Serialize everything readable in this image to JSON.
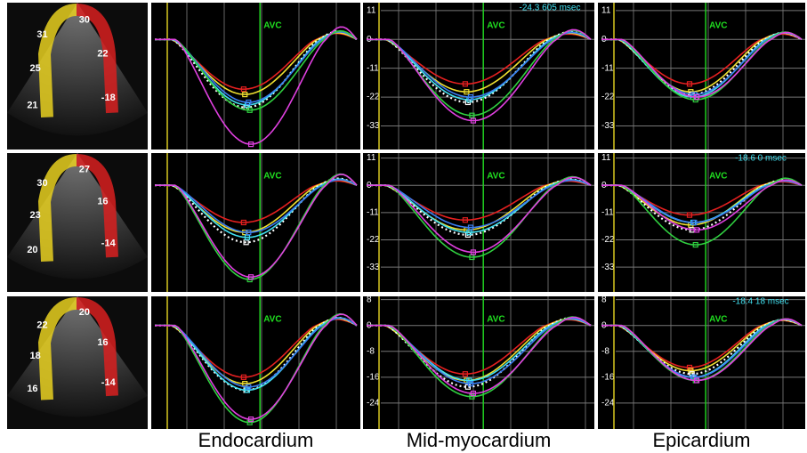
{
  "columns": [
    "Endocardium",
    "Mid-myocardium",
    "Epicardium"
  ],
  "rows": [
    {
      "echo_labels": [
        "30",
        "31",
        "22",
        "25",
        "-18",
        "21"
      ],
      "panels": [
        {
          "ylim": [
            -42,
            14
          ],
          "avc": "AVC",
          "curves": [
            {
              "color": "#e52020",
              "peak": -19
            },
            {
              "color": "#f0e030",
              "peak": -21
            },
            {
              "color": "#ffffff",
              "peak": -26
            },
            {
              "color": "#40e0f0",
              "peak": -25
            },
            {
              "color": "#3a7cf0",
              "peak": -24
            },
            {
              "color": "#30d040",
              "peak": -27
            },
            {
              "color": "#e040e0",
              "peak": -40
            }
          ]
        },
        {
          "ylim": [
            -42,
            14
          ],
          "yticks": [
            11,
            0,
            -11,
            -22,
            -33
          ],
          "avc": "AVC",
          "cursor": "-24.3  605 msec",
          "curves": [
            {
              "color": "#e52020",
              "peak": -17
            },
            {
              "color": "#f0e030",
              "peak": -20
            },
            {
              "color": "#ffffff",
              "peak": -24
            },
            {
              "color": "#40e0f0",
              "peak": -23
            },
            {
              "color": "#3a7cf0",
              "peak": -22
            },
            {
              "color": "#30d040",
              "peak": -29
            },
            {
              "color": "#e040e0",
              "peak": -31
            }
          ]
        },
        {
          "ylim": [
            -42,
            14
          ],
          "yticks": [
            11,
            0,
            -11,
            -22,
            -33
          ],
          "avc": "AVC",
          "curves": [
            {
              "color": "#e52020",
              "peak": -17
            },
            {
              "color": "#f0e030",
              "peak": -20
            },
            {
              "color": "#ffffff",
              "peak": -21
            },
            {
              "color": "#40e0f0",
              "peak": -22
            },
            {
              "color": "#3a7cf0",
              "peak": -21
            },
            {
              "color": "#30d040",
              "peak": -23
            },
            {
              "color": "#e040e0",
              "peak": -22
            }
          ]
        }
      ]
    },
    {
      "echo_labels": [
        "27",
        "30",
        "16",
        "23",
        "-14",
        "20"
      ],
      "panels": [
        {
          "ylim": [
            -43,
            13
          ],
          "avc": "AVC",
          "curves": [
            {
              "color": "#e52020",
              "peak": -15
            },
            {
              "color": "#f0e030",
              "peak": -19
            },
            {
              "color": "#ffffff",
              "peak": -23
            },
            {
              "color": "#40e0f0",
              "peak": -21
            },
            {
              "color": "#3a7cf0",
              "peak": -19
            },
            {
              "color": "#30d040",
              "peak": -38
            },
            {
              "color": "#e040e0",
              "peak": -37
            }
          ]
        },
        {
          "ylim": [
            -43,
            13
          ],
          "yticks": [
            11,
            0,
            -11,
            -22,
            -33
          ],
          "avc": "AVC",
          "curves": [
            {
              "color": "#e52020",
              "peak": -14
            },
            {
              "color": "#f0e030",
              "peak": -18
            },
            {
              "color": "#ffffff",
              "peak": -20
            },
            {
              "color": "#40e0f0",
              "peak": -19
            },
            {
              "color": "#3a7cf0",
              "peak": -17
            },
            {
              "color": "#30d040",
              "peak": -29
            },
            {
              "color": "#e040e0",
              "peak": -27
            }
          ]
        },
        {
          "ylim": [
            -43,
            13
          ],
          "yticks": [
            11,
            0,
            -11,
            -22,
            -33
          ],
          "avc": "AVC",
          "cursor": "-18.6  0 msec",
          "curves": [
            {
              "color": "#e52020",
              "peak": -12
            },
            {
              "color": "#f0e030",
              "peak": -16
            },
            {
              "color": "#ffffff",
              "peak": -18
            },
            {
              "color": "#40e0f0",
              "peak": -15
            },
            {
              "color": "#3a7cf0",
              "peak": -15
            },
            {
              "color": "#30d040",
              "peak": -24
            },
            {
              "color": "#e040e0",
              "peak": -18
            }
          ]
        }
      ]
    },
    {
      "echo_labels": [
        "20",
        "22",
        "16",
        "18",
        "-14",
        "16"
      ],
      "panels": [
        {
          "ylim": [
            -32,
            9
          ],
          "avc": "AVC",
          "curves": [
            {
              "color": "#e52020",
              "peak": -16
            },
            {
              "color": "#f0e030",
              "peak": -18
            },
            {
              "color": "#ffffff",
              "peak": -20
            },
            {
              "color": "#40e0f0",
              "peak": -20
            },
            {
              "color": "#3a7cf0",
              "peak": -19
            },
            {
              "color": "#30d040",
              "peak": -30
            },
            {
              "color": "#e040e0",
              "peak": -29
            }
          ]
        },
        {
          "ylim": [
            -32,
            9
          ],
          "yticks": [
            8,
            0,
            -8,
            -16,
            -24
          ],
          "avc": "AVC",
          "curves": [
            {
              "color": "#e52020",
              "peak": -15
            },
            {
              "color": "#f0e030",
              "peak": -17
            },
            {
              "color": "#ffffff",
              "peak": -19
            },
            {
              "color": "#40e0f0",
              "peak": -17
            },
            {
              "color": "#3a7cf0",
              "peak": -18
            },
            {
              "color": "#30d040",
              "peak": -22
            },
            {
              "color": "#e040e0",
              "peak": -21
            }
          ]
        },
        {
          "ylim": [
            -32,
            9
          ],
          "yticks": [
            8,
            0,
            -8,
            -16,
            -24
          ],
          "avc": "AVC",
          "cursor": "-18.4  18 msec",
          "curves": [
            {
              "color": "#e52020",
              "peak": -13
            },
            {
              "color": "#f0e030",
              "peak": -14
            },
            {
              "color": "#ffffff",
              "peak": -15
            },
            {
              "color": "#40e0f0",
              "peak": -16
            },
            {
              "color": "#3a7cf0",
              "peak": -16
            },
            {
              "color": "#30d040",
              "peak": -17
            },
            {
              "color": "#e040e0",
              "peak": -17
            }
          ]
        }
      ]
    }
  ]
}
